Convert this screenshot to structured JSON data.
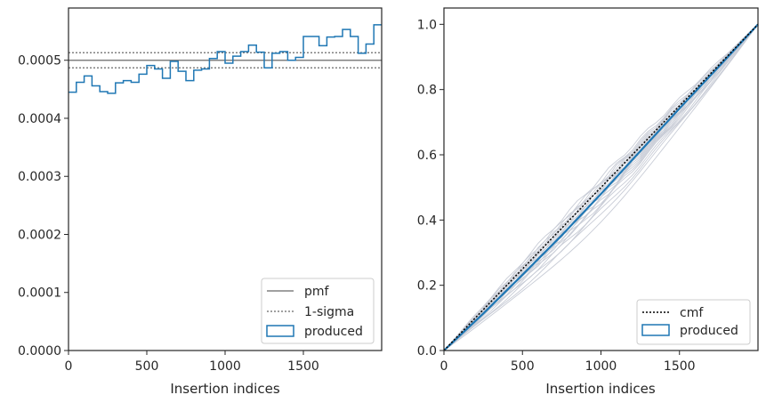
{
  "chart_data": [
    {
      "type": "histogram",
      "xlabel": "Insertion indices",
      "ylabel": "",
      "xlim": [
        0,
        2000
      ],
      "ylim": [
        0,
        0.00059
      ],
      "xticks": [
        0,
        500,
        1000,
        1500
      ],
      "yticks": [
        0.0,
        0.0001,
        0.0002,
        0.0003,
        0.0004,
        0.0005
      ],
      "ytick_labels": [
        "0.0000",
        "0.0001",
        "0.0002",
        "0.0003",
        "0.0004",
        "0.0005"
      ],
      "xtick_labels": [
        "0",
        "500",
        "1000",
        "1500"
      ],
      "lines": {
        "pmf": 0.0005,
        "sigma_upper": 0.000513,
        "sigma_lower": 0.000487
      },
      "bin_width": 50,
      "bin_values": [
        0.000445,
        0.000462,
        0.000473,
        0.000456,
        0.000446,
        0.000443,
        0.000461,
        0.000465,
        0.000462,
        0.000476,
        0.000491,
        0.000485,
        0.000469,
        0.000498,
        0.000481,
        0.000465,
        0.000483,
        0.000485,
        0.000503,
        0.000515,
        0.000495,
        0.000507,
        0.000515,
        0.000526,
        0.000514,
        0.000487,
        0.000512,
        0.000515,
        0.0005,
        0.000505,
        0.000541,
        0.000541,
        0.000525,
        0.00054,
        0.000541,
        0.000553,
        0.000541,
        0.000512,
        0.000528,
        0.000561
      ],
      "legend": {
        "placement": "lower right",
        "entries": [
          {
            "label": "pmf",
            "style": "solid",
            "color": "#808080"
          },
          {
            "label": "1-sigma",
            "style": "dotted",
            "color": "#808080"
          },
          {
            "label": "produced",
            "style": "box",
            "color": "#1f77b4"
          }
        ]
      }
    },
    {
      "type": "line",
      "xlabel": "Insertion indices",
      "ylabel": "",
      "xlim": [
        0,
        2000
      ],
      "ylim": [
        0,
        1.05
      ],
      "xticks": [
        0,
        500,
        1000,
        1500
      ],
      "xtick_labels": [
        "0",
        "500",
        "1000",
        "1500"
      ],
      "yticks": [
        0.0,
        0.2,
        0.4,
        0.6,
        0.8,
        1.0
      ],
      "ytick_labels": [
        "0.0",
        "0.2",
        "0.4",
        "0.6",
        "0.8",
        "1.0"
      ],
      "cmf": {
        "x": [
          0,
          2000
        ],
        "y": [
          0,
          1
        ],
        "style": "dotted",
        "color": "#000000"
      },
      "produced": {
        "x": [
          0,
          250,
          500,
          750,
          1000,
          1250,
          1500,
          1750,
          2000
        ],
        "y": [
          0,
          0.113,
          0.232,
          0.353,
          0.48,
          0.611,
          0.742,
          0.87,
          1.0
        ],
        "color": "#1f77b4"
      },
      "ensemble_deviations": [
        -0.1,
        -0.08,
        -0.07,
        -0.06,
        -0.05,
        -0.045,
        -0.04,
        -0.035,
        -0.03,
        -0.025,
        -0.02,
        -0.015,
        -0.01,
        -0.005,
        0.0,
        0.005,
        0.01,
        0.015,
        0.02,
        0.03
      ],
      "ensemble_color": "#c8ccd6",
      "legend": {
        "placement": "lower right",
        "entries": [
          {
            "label": "cmf",
            "style": "dotted",
            "color": "#000000"
          },
          {
            "label": "produced",
            "style": "box",
            "color": "#1f77b4"
          }
        ]
      }
    }
  ]
}
